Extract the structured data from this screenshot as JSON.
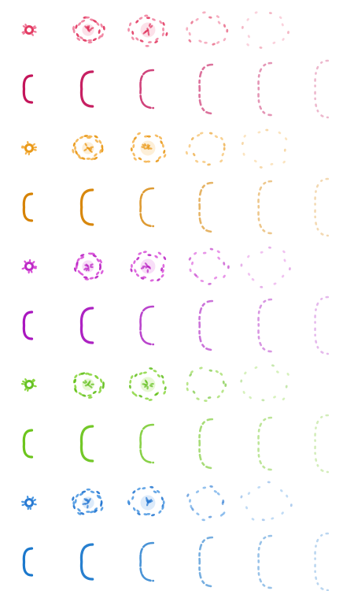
{
  "sheet": {
    "background": "#ffffff",
    "frames_per_row": 6,
    "palettes": [
      {
        "name": "red",
        "burst": "#e0305a",
        "light": "#f07b9a",
        "glow": "#f6a9bf",
        "c": "#c4145a"
      },
      {
        "name": "orange",
        "burst": "#e8930c",
        "light": "#f4b24a",
        "glow": "#f9d28f",
        "c": "#d68200"
      },
      {
        "name": "purple",
        "burst": "#b81fc2",
        "light": "#d84fd8",
        "glow": "#eba0ea",
        "c": "#a916bf"
      },
      {
        "name": "green",
        "burst": "#5fbe1a",
        "light": "#8ad63e",
        "glow": "#bdec88",
        "c": "#6cc51c"
      },
      {
        "name": "blue",
        "burst": "#1f73d0",
        "light": "#4b98e2",
        "glow": "#9fc7f2",
        "c": "#1b78cc"
      }
    ],
    "burst_frames": [
      {
        "visible": true
      },
      {
        "visible": true
      },
      {
        "visible": true
      },
      {
        "visible": true
      },
      {
        "visible": true
      },
      {
        "visible": false
      }
    ],
    "c_frames": [
      {
        "fade": 1.0
      },
      {
        "fade": 0.95
      },
      {
        "fade": 0.8
      },
      {
        "fade": 0.6
      },
      {
        "fade": 0.45
      },
      {
        "fade": 0.3
      }
    ]
  }
}
